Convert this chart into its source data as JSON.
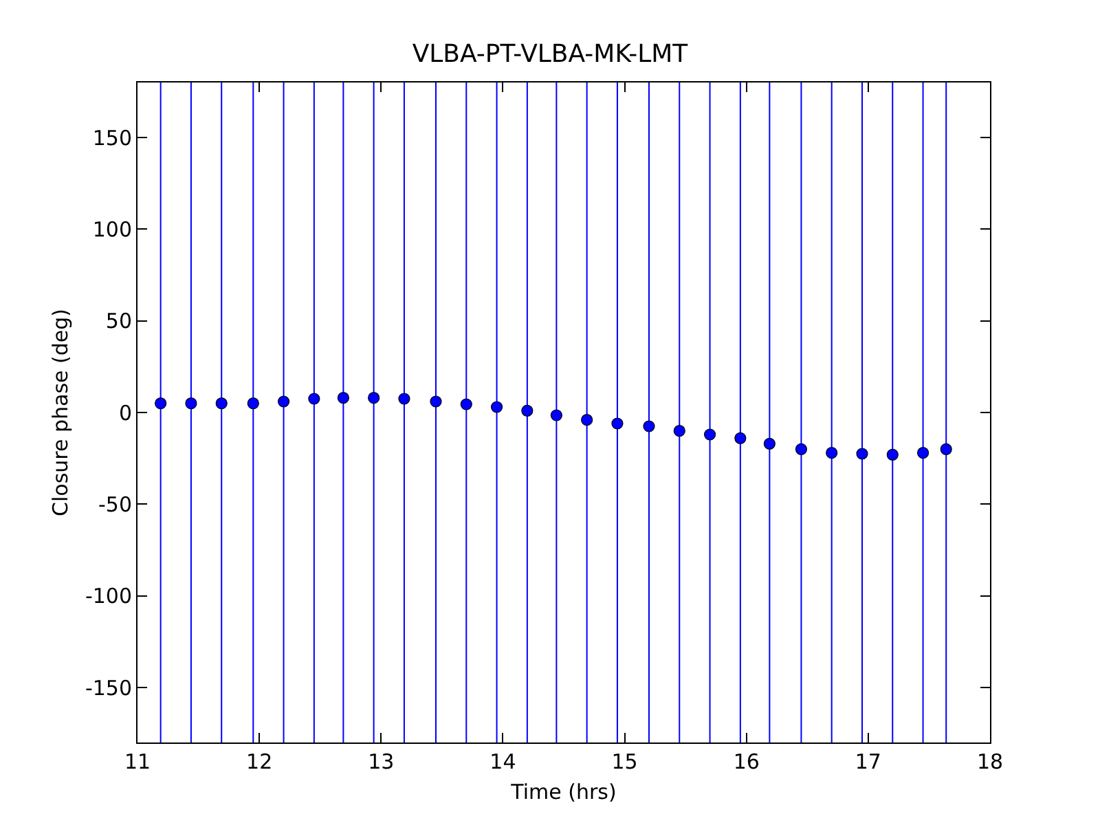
{
  "chart_data": {
    "type": "scatter",
    "title": "VLBA-PT-VLBA-MK-LMT",
    "xlabel": "Time (hrs)",
    "ylabel": "Closure phase (deg)",
    "x": [
      11.19,
      11.44,
      11.69,
      11.95,
      12.2,
      12.45,
      12.69,
      12.94,
      13.19,
      13.45,
      13.7,
      13.95,
      14.2,
      14.44,
      14.69,
      14.94,
      15.2,
      15.45,
      15.7,
      15.95,
      16.19,
      16.45,
      16.7,
      16.95,
      17.2,
      17.45,
      17.64
    ],
    "series": [
      {
        "color": "#0000ff",
        "values": [
          5,
          5,
          5,
          5,
          6,
          7.5,
          8,
          8,
          7.5,
          6,
          4.5,
          3,
          1,
          -1.5,
          -4,
          -6,
          -7.5,
          -10,
          -12,
          -14,
          -17,
          -20,
          -22,
          -22.5,
          -23,
          -22,
          -20
        ],
        "errors": [
          [
            -180,
            180
          ],
          [
            -180,
            180
          ],
          [
            -180,
            180
          ],
          [
            -180,
            180
          ],
          [
            -180,
            180
          ],
          [
            -180,
            180
          ],
          [
            -180,
            180
          ],
          [
            -180,
            180
          ],
          [
            -180,
            180
          ],
          [
            -180,
            180
          ],
          [
            -180,
            180
          ],
          [
            -180,
            180
          ],
          [
            -180,
            180
          ],
          [
            -180,
            180
          ],
          [
            -180,
            180
          ],
          [
            -180,
            180
          ],
          [
            -180,
            180
          ],
          [
            -180,
            180
          ],
          [
            -180,
            180
          ],
          [
            -180,
            180
          ],
          [
            -180,
            180
          ],
          [
            -180,
            180
          ],
          [
            -180,
            180
          ],
          [
            -180,
            180
          ],
          [
            -180,
            180
          ],
          [
            -180,
            180
          ],
          [
            -180,
            180
          ]
        ]
      }
    ],
    "xlim": [
      11,
      18
    ],
    "xticks": [
      11,
      12,
      13,
      14,
      15,
      16,
      17,
      18
    ],
    "ylim": [
      -180,
      180
    ],
    "yticks": [
      -150,
      -100,
      -50,
      0,
      50,
      100,
      150
    ],
    "grid": false,
    "marker": "circle"
  }
}
